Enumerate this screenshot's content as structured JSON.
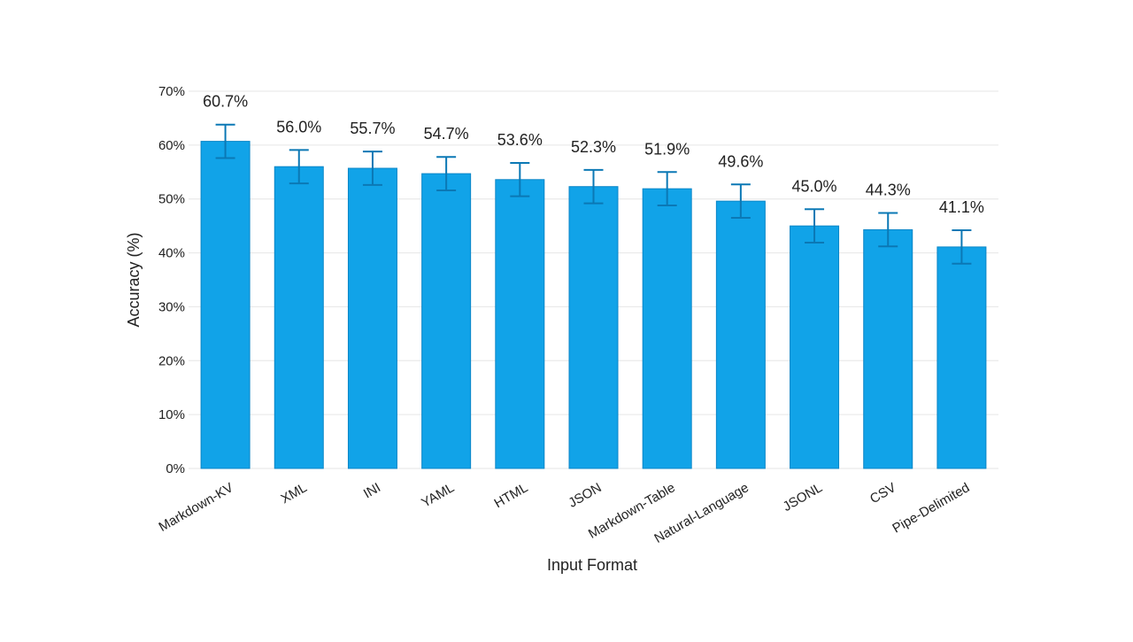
{
  "chart_data": {
    "type": "bar",
    "title": "",
    "xlabel": "Input Format",
    "ylabel": "Accuracy (%)",
    "ylim": [
      0,
      70
    ],
    "yticks": [
      0,
      10,
      20,
      30,
      40,
      50,
      60,
      70
    ],
    "ytick_labels": [
      "0%",
      "10%",
      "20%",
      "30%",
      "40%",
      "50%",
      "60%",
      "70%"
    ],
    "grid": true,
    "legend": "none",
    "categories": [
      "Markdown-KV",
      "XML",
      "INI",
      "YAML",
      "HTML",
      "JSON",
      "Markdown-Table",
      "Natural-Language",
      "JSONL",
      "CSV",
      "Pipe-Delimited"
    ],
    "values": [
      60.7,
      56.0,
      55.7,
      54.7,
      53.6,
      52.3,
      51.9,
      49.6,
      45.0,
      44.3,
      41.1
    ],
    "value_labels": [
      "60.7%",
      "56.0%",
      "55.7%",
      "54.7%",
      "53.6%",
      "52.3%",
      "51.9%",
      "49.6%",
      "45.0%",
      "44.3%",
      "41.1%"
    ],
    "error_lower": [
      57.6,
      52.9,
      52.6,
      51.6,
      50.5,
      49.2,
      48.8,
      46.5,
      41.9,
      41.2,
      38.0
    ],
    "error_upper": [
      63.8,
      59.1,
      58.8,
      57.8,
      56.7,
      55.4,
      55.0,
      52.7,
      48.1,
      47.4,
      44.2
    ],
    "colors": {
      "bar": "#11a3e8",
      "bar_edge": "#0b86c7",
      "error_bar": "#0b78b5"
    }
  }
}
